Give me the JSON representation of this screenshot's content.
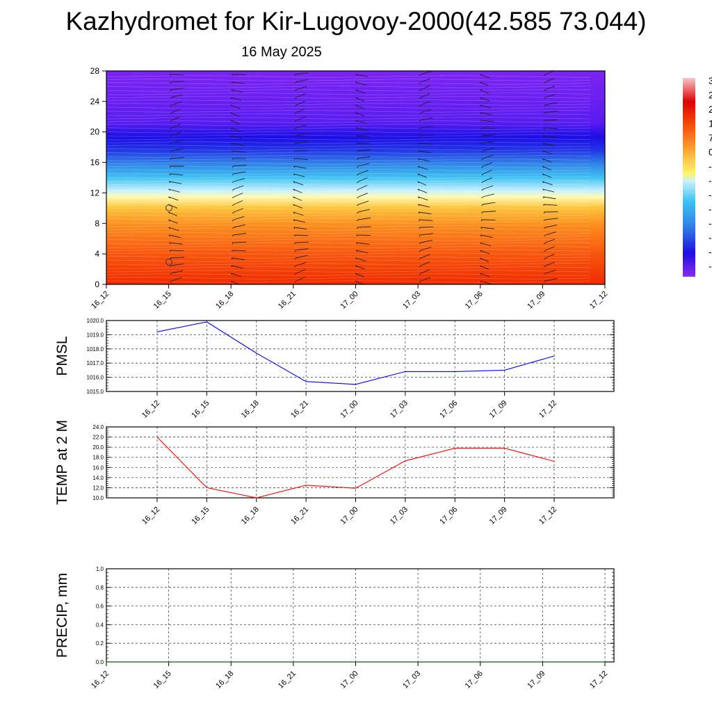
{
  "title": "Kazhydromet for Kir-Lugovoy-2000(42.585 73.044)",
  "subtitle": "16 May 2025",
  "colors": {
    "pmsl_line": "#0000ff",
    "temp_line": "#ff0000",
    "precip_line": "#006400"
  },
  "chart_data": [
    {
      "type": "heatmap",
      "description_free": true,
      "x_ticks": [
        "16_12",
        "16_15",
        "16_18",
        "16_21",
        "17_00",
        "17_03",
        "17_06",
        "17_09",
        "17_12"
      ],
      "y_ticks": [
        0,
        4,
        8,
        12,
        16,
        20,
        24,
        28
      ],
      "ylim": [
        0,
        28
      ],
      "colorbar_ticks": [
        "3",
        "2",
        "2",
        "1",
        "7",
        "0",
        "-",
        "-",
        "-",
        "-",
        "-",
        "-",
        "-",
        "-"
      ],
      "grid": false
    },
    {
      "type": "line",
      "ylabel": "PMSL",
      "x_ticks": [
        "16_12",
        "16_15",
        "16_18",
        "16_21",
        "17_00",
        "17_03",
        "17_06",
        "17_09",
        "17_12"
      ],
      "y_ticks": [
        "1015.0",
        "1016.0",
        "1017.0",
        "1018.0",
        "1019.0",
        "1020.0"
      ],
      "ylim": [
        1015,
        1020
      ],
      "series": [
        {
          "values": [
            1019.2,
            1019.9,
            1017.7,
            1015.7,
            1015.5,
            1016.4,
            1016.4,
            1016.5,
            1017.5
          ]
        }
      ],
      "grid": true
    },
    {
      "type": "line",
      "ylabel": "TEMP at 2 M",
      "x_ticks": [
        "16_12",
        "16_15",
        "16_18",
        "16_21",
        "17_00",
        "17_03",
        "17_06",
        "17_09",
        "17_12"
      ],
      "y_ticks": [
        "10.0",
        "12.0",
        "14.0",
        "16.0",
        "18.0",
        "20.0",
        "22.0",
        "24.0"
      ],
      "ylim": [
        10,
        24
      ],
      "series": [
        {
          "values": [
            22.0,
            12.0,
            10.0,
            12.5,
            11.9,
            17.3,
            19.8,
            19.8,
            17.2
          ]
        }
      ],
      "grid": true
    },
    {
      "type": "line",
      "ylabel": "PRECIP, mm",
      "x_ticks": [
        "16_12",
        "16_15",
        "16_18",
        "16_21",
        "17_00",
        "17_03",
        "17_06",
        "17_09",
        "17_12"
      ],
      "y_ticks": [
        "0.0",
        "0.2",
        "0.4",
        "0.6",
        "0.8",
        "1.0"
      ],
      "ylim": [
        0,
        1
      ],
      "series": [
        {
          "values": [
            0,
            0,
            0,
            0,
            0,
            0,
            0,
            0,
            0
          ]
        }
      ],
      "grid": true
    }
  ]
}
